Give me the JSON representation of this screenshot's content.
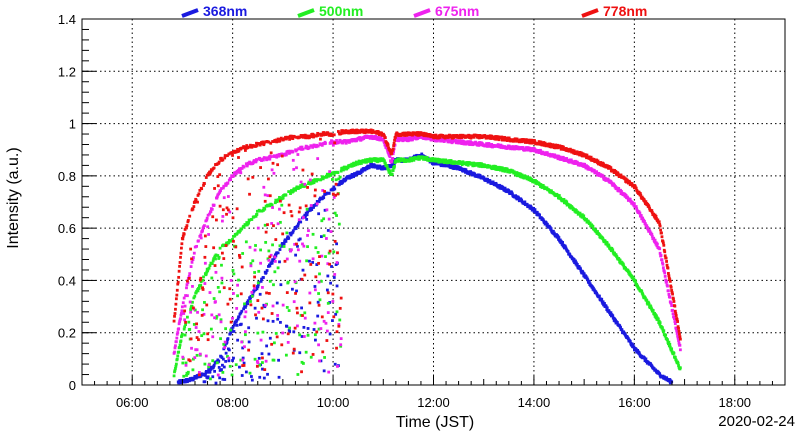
{
  "chart_data": {
    "type": "scatter",
    "xlabel": "Time (JST)",
    "ylabel": "Intensity (a.u.)",
    "date_label": "2020-02-24",
    "xlim": [
      "05:00",
      "19:00"
    ],
    "ylim": [
      0,
      1.4
    ],
    "grid": true,
    "legend_position": "top",
    "x_ticks": [
      "06:00",
      "08:00",
      "10:00",
      "12:00",
      "14:00",
      "16:00",
      "18:00"
    ],
    "y_ticks": [
      "0",
      "0.2",
      "0.4",
      "0.6",
      "0.8",
      "1",
      "1.2",
      "1.4"
    ],
    "series": [
      {
        "name": "368nm",
        "color": "#1a1adf",
        "x": [
          "06:55",
          "07:10",
          "07:30",
          "07:45",
          "08:00",
          "08:15",
          "08:30",
          "08:45",
          "09:00",
          "09:15",
          "09:30",
          "09:45",
          "10:00",
          "10:15",
          "10:30",
          "10:45",
          "11:00",
          "11:10",
          "11:15",
          "11:30",
          "11:45",
          "12:00",
          "12:30",
          "13:00",
          "13:30",
          "14:00",
          "14:30",
          "15:00",
          "15:30",
          "16:00",
          "16:30",
          "16:45"
        ],
        "y": [
          0.01,
          0.02,
          0.05,
          0.1,
          0.22,
          0.3,
          0.38,
          0.46,
          0.54,
          0.6,
          0.66,
          0.71,
          0.75,
          0.79,
          0.81,
          0.84,
          0.83,
          0.84,
          0.86,
          0.86,
          0.88,
          0.85,
          0.83,
          0.79,
          0.74,
          0.67,
          0.56,
          0.42,
          0.28,
          0.14,
          0.04,
          0.01
        ],
        "scatter_range": [
          "07:25",
          "10:10"
        ]
      },
      {
        "name": "500nm",
        "color": "#22ee22",
        "x": [
          "06:50",
          "07:00",
          "07:15",
          "07:30",
          "07:45",
          "08:00",
          "08:15",
          "08:30",
          "08:45",
          "09:00",
          "09:15",
          "09:30",
          "09:45",
          "10:00",
          "10:15",
          "10:30",
          "10:45",
          "11:00",
          "11:10",
          "11:15",
          "11:30",
          "11:45",
          "12:00",
          "12:30",
          "13:00",
          "13:30",
          "14:00",
          "14:30",
          "15:00",
          "15:30",
          "16:00",
          "16:30",
          "16:55"
        ],
        "y": [
          0.04,
          0.2,
          0.34,
          0.44,
          0.52,
          0.56,
          0.61,
          0.66,
          0.69,
          0.72,
          0.75,
          0.77,
          0.79,
          0.81,
          0.83,
          0.85,
          0.86,
          0.86,
          0.8,
          0.86,
          0.86,
          0.87,
          0.86,
          0.85,
          0.84,
          0.82,
          0.78,
          0.72,
          0.64,
          0.53,
          0.4,
          0.24,
          0.06
        ],
        "scatter_range": [
          "07:00",
          "10:10"
        ]
      },
      {
        "name": "675nm",
        "color": "#ee22ee",
        "x": [
          "06:50",
          "07:00",
          "07:15",
          "07:30",
          "07:45",
          "08:00",
          "08:15",
          "08:30",
          "08:45",
          "09:00",
          "09:15",
          "09:30",
          "09:45",
          "10:00",
          "10:15",
          "10:30",
          "10:45",
          "11:00",
          "11:10",
          "11:15",
          "11:30",
          "11:45",
          "12:00",
          "12:30",
          "13:00",
          "13:30",
          "14:00",
          "14:30",
          "15:00",
          "15:30",
          "16:00",
          "16:30",
          "16:55"
        ],
        "y": [
          0.12,
          0.3,
          0.52,
          0.64,
          0.74,
          0.8,
          0.84,
          0.86,
          0.87,
          0.88,
          0.9,
          0.91,
          0.92,
          0.93,
          0.93,
          0.94,
          0.95,
          0.94,
          0.85,
          0.94,
          0.94,
          0.95,
          0.94,
          0.93,
          0.92,
          0.91,
          0.9,
          0.87,
          0.84,
          0.78,
          0.69,
          0.52,
          0.14
        ],
        "scatter_range": [
          "07:00",
          "10:10"
        ]
      },
      {
        "name": "778nm",
        "color": "#ee1111",
        "x": [
          "06:50",
          "07:00",
          "07:15",
          "07:30",
          "07:45",
          "08:00",
          "08:15",
          "08:30",
          "08:45",
          "09:00",
          "09:15",
          "09:30",
          "09:45",
          "10:00",
          "10:15",
          "10:30",
          "10:45",
          "11:00",
          "11:10",
          "11:15",
          "11:30",
          "11:45",
          "12:00",
          "12:30",
          "13:00",
          "13:30",
          "14:00",
          "14:30",
          "15:00",
          "15:30",
          "16:00",
          "16:30",
          "16:55"
        ],
        "y": [
          0.24,
          0.56,
          0.7,
          0.8,
          0.86,
          0.89,
          0.91,
          0.92,
          0.93,
          0.94,
          0.95,
          0.95,
          0.96,
          0.96,
          0.97,
          0.97,
          0.97,
          0.96,
          0.88,
          0.96,
          0.96,
          0.96,
          0.95,
          0.95,
          0.95,
          0.94,
          0.93,
          0.91,
          0.88,
          0.83,
          0.76,
          0.62,
          0.18
        ],
        "scatter_range": [
          "07:00",
          "10:10"
        ]
      }
    ]
  }
}
